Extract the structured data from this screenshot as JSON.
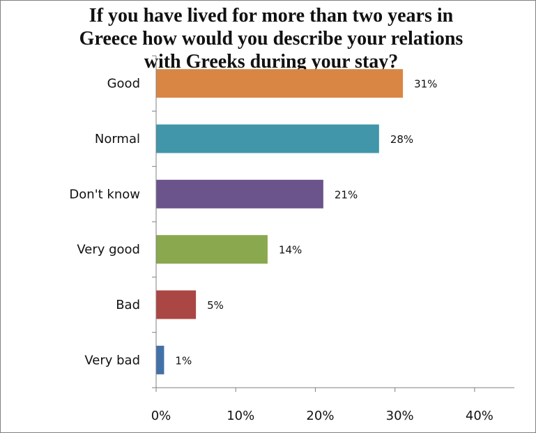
{
  "chart_data": {
    "type": "bar",
    "orientation": "horizontal",
    "title": "If you have lived for more than two years in Greece how would you describe your relations with Greeks during your stay?",
    "title_lines": [
      "If you have lived for more than two years in",
      "Greece how would you describe your relations",
      "with Greeks during your stay?"
    ],
    "categories": [
      "Good",
      "Normal",
      "Don't know",
      "Very good",
      "Bad",
      "Very bad"
    ],
    "values": [
      31,
      28,
      21,
      14,
      5,
      1
    ],
    "data_labels": [
      "31%",
      "28%",
      "21%",
      "14%",
      "5%",
      "1%"
    ],
    "colors": [
      "#d98645",
      "#4196a9",
      "#6b538c",
      "#8aa84e",
      "#aa4644",
      "#4271a8"
    ],
    "xlim": [
      0,
      45
    ],
    "x_ticks": [
      0,
      10,
      20,
      30,
      40
    ],
    "x_tick_labels": [
      "0%",
      "10%",
      "20%",
      "30%",
      "40%"
    ],
    "xlabel": "",
    "ylabel": "",
    "grid": false,
    "legend": "none"
  }
}
